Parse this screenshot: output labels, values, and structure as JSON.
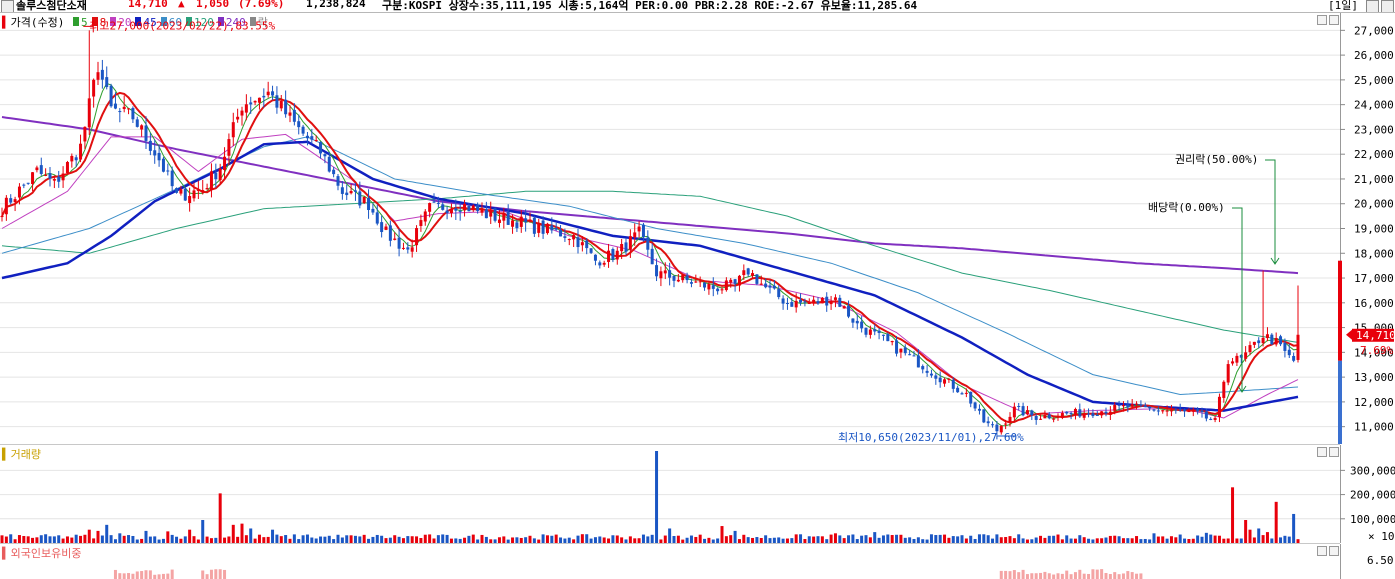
{
  "header": {
    "title": "솔루스첨단소재",
    "price": "14,710",
    "change_arrow": "▲",
    "change": "1,050",
    "change_pct": "(7.69%)",
    "volume": "1,238,824",
    "info": "구분:KOSPI  상장수:35,111,195  시총:5,164억  PER:0.00  PBR:2.28  ROE:-2.67  유보율:11,285.64",
    "period": "[1일]"
  },
  "colors": {
    "up": "#e8000b",
    "down": "#1a56c4",
    "ma5": "#2e9e2e",
    "ma8": "#e01010",
    "ma20": "#c040c0",
    "ma45": "#1020c0",
    "ma60": "#3c8ec8",
    "ma120": "#2aa07a",
    "ma240": "#8030c0"
  },
  "legend": {
    "price": "가격(수정)",
    "items": [
      {
        "label": "5",
        "color": "#2e9e2e"
      },
      {
        "label": "8",
        "color": "#e01010"
      },
      {
        "label": "20",
        "color": "#c040c0"
      },
      {
        "label": "45",
        "color": "#1020c0"
      },
      {
        "label": "60",
        "color": "#3c8ec8"
      },
      {
        "label": "120",
        "color": "#2aa07a"
      },
      {
        "label": "240",
        "color": "#8030c0"
      },
      {
        "label": "락",
        "color": "#888888"
      }
    ]
  },
  "annotations": {
    "high": "최고27,000(2023/02/22),83.55%",
    "low": "최저10,650(2023/11/01),27.60%",
    "dividend": "배당락(0.00%)",
    "rights": "권리락(50.00%)"
  },
  "price_tag": {
    "price": "14,710",
    "pct": "7.69%"
  },
  "volume_panel": {
    "title": "거래량",
    "multiplier": "× 10"
  },
  "foreign_panel": {
    "title": "외국인보유비중",
    "tick": "6.50"
  },
  "chart_data": [
    {
      "type": "candlestick",
      "title": "가격(수정)",
      "yticks": [
        11000,
        12000,
        13000,
        14000,
        15000,
        16000,
        17000,
        18000,
        19000,
        20000,
        21000,
        22000,
        23000,
        24000,
        25000,
        26000,
        27000
      ],
      "ylim": [
        10300,
        27700
      ],
      "anchors": [
        [
          0,
          19800
        ],
        [
          8,
          21300
        ],
        [
          12,
          20800
        ],
        [
          18,
          22300
        ],
        [
          22,
          25600
        ],
        [
          25,
          23800
        ],
        [
          30,
          23500
        ],
        [
          36,
          21800
        ],
        [
          40,
          20300
        ],
        [
          46,
          20600
        ],
        [
          50,
          21500
        ],
        [
          55,
          24000
        ],
        [
          61,
          24500
        ],
        [
          68,
          23000
        ],
        [
          73,
          22100
        ],
        [
          78,
          20500
        ],
        [
          84,
          20000
        ],
        [
          88,
          18800
        ],
        [
          93,
          18100
        ],
        [
          98,
          19800
        ],
        [
          105,
          20000
        ],
        [
          112,
          19500
        ],
        [
          118,
          19300
        ],
        [
          123,
          19000
        ],
        [
          131,
          18700
        ],
        [
          136,
          17700
        ],
        [
          141,
          18000
        ],
        [
          146,
          18800
        ],
        [
          150,
          17200
        ],
        [
          159,
          16800
        ],
        [
          163,
          16600
        ],
        [
          168,
          16700
        ],
        [
          171,
          17300
        ],
        [
          175,
          16600
        ],
        [
          180,
          16000
        ],
        [
          186,
          16000
        ],
        [
          191,
          16200
        ],
        [
          196,
          15100
        ],
        [
          201,
          14600
        ],
        [
          209,
          13700
        ],
        [
          214,
          13100
        ],
        [
          221,
          12300
        ],
        [
          225,
          11200
        ],
        [
          228,
          10850
        ],
        [
          232,
          11700
        ],
        [
          237,
          11400
        ],
        [
          243,
          11500
        ],
        [
          250,
          11600
        ],
        [
          258,
          11800
        ],
        [
          264,
          11700
        ],
        [
          270,
          11600
        ],
        [
          274,
          11500
        ],
        [
          278,
          11200
        ],
        [
          281,
          13700
        ],
        [
          284,
          13700
        ],
        [
          289,
          14700
        ],
        [
          292,
          14400
        ],
        [
          295,
          13800
        ],
        [
          297,
          14710
        ]
      ],
      "ma_anchors": {
        "ma240": [
          [
            0,
            23500
          ],
          [
            20,
            23000
          ],
          [
            40,
            22200
          ],
          [
            60,
            21500
          ],
          [
            80,
            20800
          ],
          [
            100,
            20100
          ],
          [
            120,
            19700
          ],
          [
            140,
            19400
          ],
          [
            160,
            19100
          ],
          [
            180,
            18800
          ],
          [
            200,
            18400
          ],
          [
            220,
            18200
          ],
          [
            240,
            17900
          ],
          [
            260,
            17600
          ],
          [
            280,
            17400
          ],
          [
            297,
            17200
          ]
        ],
        "ma120": [
          [
            0,
            18300
          ],
          [
            20,
            18000
          ],
          [
            40,
            19000
          ],
          [
            60,
            19800
          ],
          [
            80,
            20000
          ],
          [
            100,
            20200
          ],
          [
            120,
            20500
          ],
          [
            140,
            20500
          ],
          [
            160,
            20300
          ],
          [
            180,
            19500
          ],
          [
            200,
            18300
          ],
          [
            220,
            17200
          ],
          [
            240,
            16500
          ],
          [
            260,
            15700
          ],
          [
            280,
            14900
          ],
          [
            297,
            14400
          ]
        ],
        "ma60": [
          [
            0,
            18000
          ],
          [
            20,
            19000
          ],
          [
            40,
            20600
          ],
          [
            60,
            22300
          ],
          [
            70,
            22700
          ],
          [
            90,
            21000
          ],
          [
            110,
            20400
          ],
          [
            130,
            19900
          ],
          [
            150,
            19000
          ],
          [
            170,
            18400
          ],
          [
            190,
            17600
          ],
          [
            210,
            16400
          ],
          [
            230,
            14800
          ],
          [
            250,
            13100
          ],
          [
            270,
            12300
          ],
          [
            280,
            12400
          ],
          [
            297,
            12600
          ]
        ],
        "ma45": [
          [
            0,
            17000
          ],
          [
            15,
            17600
          ],
          [
            25,
            18700
          ],
          [
            35,
            20100
          ],
          [
            50,
            21400
          ],
          [
            60,
            22400
          ],
          [
            70,
            22500
          ],
          [
            85,
            21000
          ],
          [
            100,
            20200
          ],
          [
            120,
            19600
          ],
          [
            140,
            18700
          ],
          [
            160,
            18300
          ],
          [
            180,
            17300
          ],
          [
            200,
            16300
          ],
          [
            220,
            14600
          ],
          [
            235,
            13100
          ],
          [
            250,
            12000
          ],
          [
            265,
            11800
          ],
          [
            280,
            11650
          ],
          [
            297,
            12200
          ]
        ],
        "ma20": [
          [
            0,
            19000
          ],
          [
            15,
            20500
          ],
          [
            25,
            22700
          ],
          [
            35,
            22700
          ],
          [
            45,
            21300
          ],
          [
            55,
            22600
          ],
          [
            65,
            22800
          ],
          [
            80,
            21000
          ],
          [
            90,
            19300
          ],
          [
            100,
            19600
          ],
          [
            115,
            19700
          ],
          [
            130,
            18700
          ],
          [
            145,
            18100
          ],
          [
            160,
            16900
          ],
          [
            175,
            16700
          ],
          [
            190,
            16100
          ],
          [
            205,
            14800
          ],
          [
            220,
            12700
          ],
          [
            235,
            11500
          ],
          [
            250,
            11650
          ],
          [
            270,
            11750
          ],
          [
            280,
            11350
          ],
          [
            290,
            12300
          ],
          [
            297,
            12900
          ]
        ]
      },
      "high_low": {
        "high": 27000,
        "high_index": 20,
        "low": 10650,
        "low_index": 228
      }
    },
    {
      "type": "bar",
      "title": "거래량",
      "yticks": [
        100000,
        200000,
        300000
      ],
      "ylim": [
        0,
        380000
      ],
      "baseline": 28000,
      "spikes": [
        [
          20,
          55000
        ],
        [
          22,
          50000
        ],
        [
          24,
          75000
        ],
        [
          27,
          40000
        ],
        [
          33,
          50000
        ],
        [
          38,
          48000
        ],
        [
          43,
          55000
        ],
        [
          46,
          95000
        ],
        [
          50,
          205000
        ],
        [
          53,
          75000
        ],
        [
          55,
          80000
        ],
        [
          57,
          60000
        ],
        [
          62,
          55000
        ],
        [
          70,
          35000
        ],
        [
          150,
          380000
        ],
        [
          153,
          60000
        ],
        [
          165,
          70000
        ],
        [
          168,
          50000
        ],
        [
          191,
          40000
        ],
        [
          200,
          45000
        ],
        [
          222,
          30000
        ],
        [
          242,
          35000
        ],
        [
          264,
          40000
        ],
        [
          270,
          35000
        ],
        [
          276,
          42000
        ],
        [
          282,
          230000
        ],
        [
          285,
          95000
        ],
        [
          286,
          55000
        ],
        [
          288,
          60000
        ],
        [
          290,
          45000
        ],
        [
          292,
          170000
        ],
        [
          296,
          120000
        ]
      ]
    }
  ]
}
